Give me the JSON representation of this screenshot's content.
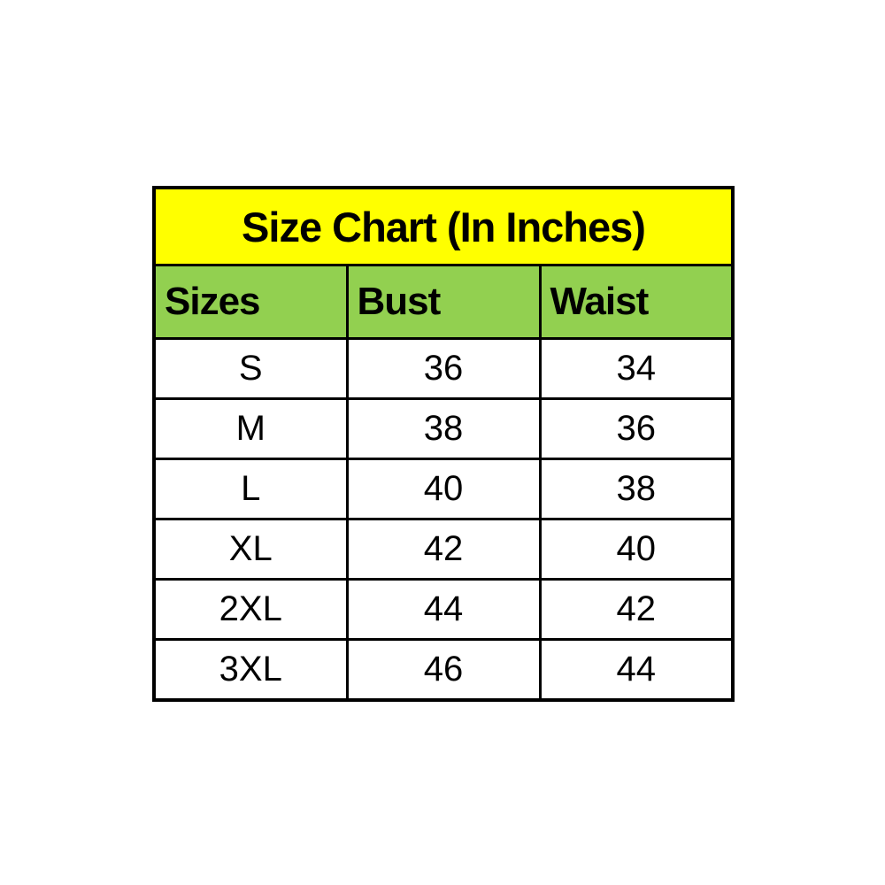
{
  "size_chart": {
    "title": "Size Chart (In Inches)",
    "columns": [
      "Sizes",
      "Bust",
      "Waist"
    ],
    "rows": [
      {
        "size": "S",
        "bust": "36",
        "waist": "34"
      },
      {
        "size": "M",
        "bust": "38",
        "waist": "36"
      },
      {
        "size": "L",
        "bust": "40",
        "waist": "38"
      },
      {
        "size": "XL",
        "bust": "42",
        "waist": "40"
      },
      {
        "size": "2XL",
        "bust": "44",
        "waist": "42"
      },
      {
        "size": "3XL",
        "bust": "46",
        "waist": "44"
      }
    ],
    "colors": {
      "title_background": "#ffff00",
      "header_background": "#92d050",
      "cell_background": "#ffffff",
      "border": "#000000",
      "text": "#000000"
    }
  },
  "chart_data": {
    "type": "table",
    "title": "Size Chart (In Inches)",
    "units": "inches",
    "columns": [
      "Sizes",
      "Bust",
      "Waist"
    ],
    "rows": [
      [
        "S",
        36,
        34
      ],
      [
        "M",
        38,
        36
      ],
      [
        "L",
        40,
        38
      ],
      [
        "XL",
        42,
        40
      ],
      [
        "2XL",
        44,
        42
      ],
      [
        "3XL",
        46,
        44
      ]
    ]
  }
}
